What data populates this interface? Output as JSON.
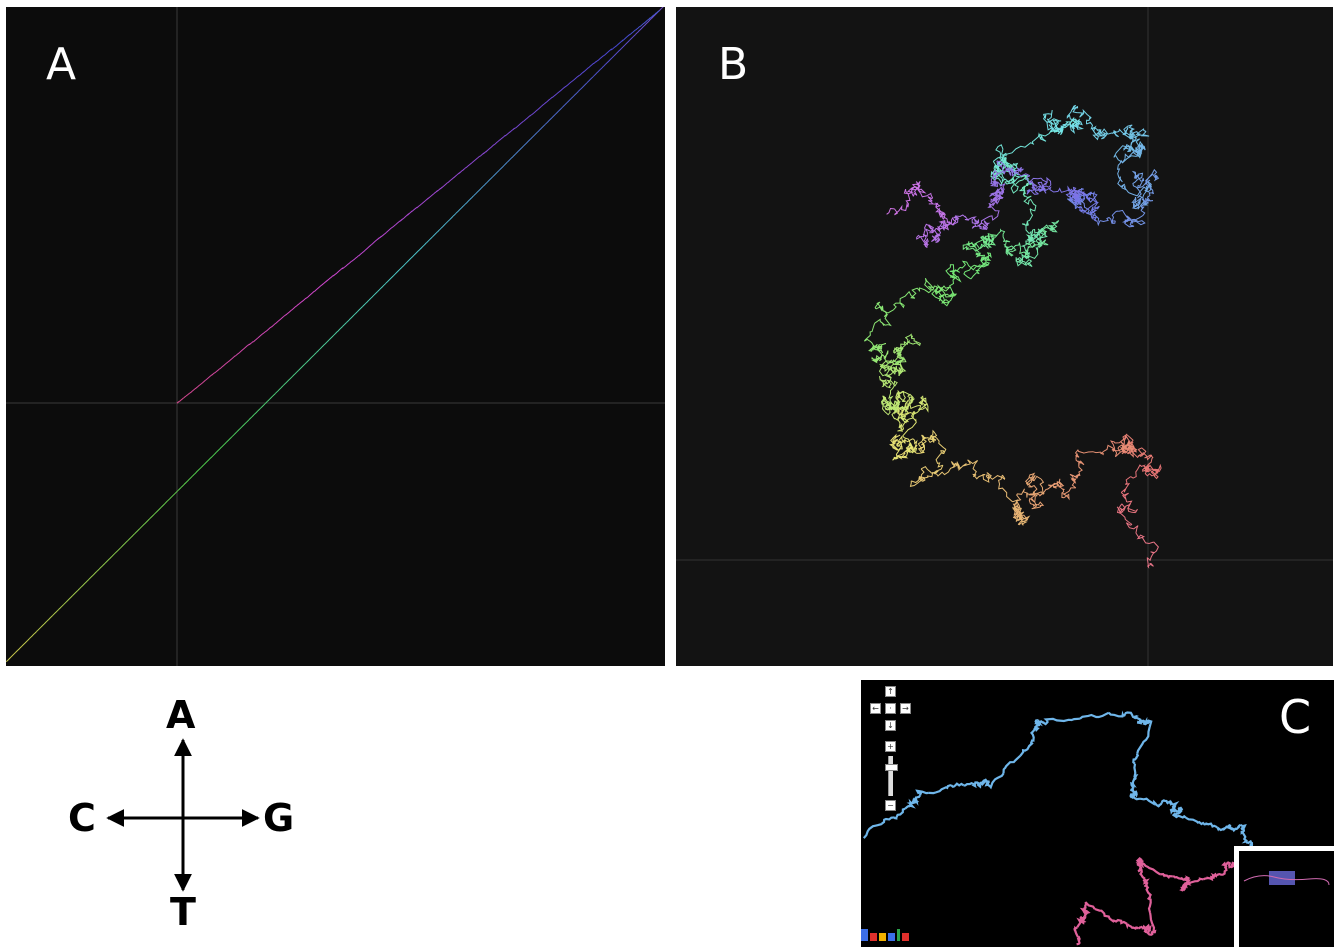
{
  "figure": {
    "panel_a": {
      "label": "A"
    },
    "panel_b": {
      "label": "B"
    },
    "panel_c": {
      "label": "C"
    },
    "compass": {
      "up": "A",
      "left": "C",
      "right": "G",
      "down": "T"
    }
  },
  "colors": {
    "panel_a_bg": "#0c0c0c",
    "panel_b_bg": "#131313",
    "panel_c_bg": "#000000",
    "axis": "#3a3a3a",
    "walk_blue": "#6fb6ea",
    "walk_pink": "#e0609a"
  },
  "icons": [
    "pan-up-icon",
    "pan-left-icon",
    "pan-center-icon",
    "pan-right-icon",
    "pan-down-icon",
    "zoom-in-icon",
    "zoom-slider-icon",
    "zoom-out-icon",
    "google-logo-icon"
  ]
}
